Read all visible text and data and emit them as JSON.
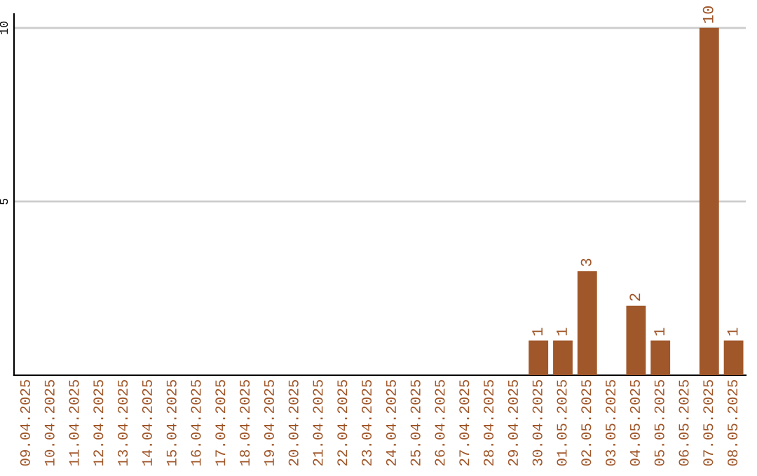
{
  "chart_data": {
    "type": "bar",
    "categories": [
      "09.04.2025",
      "10.04.2025",
      "11.04.2025",
      "12.04.2025",
      "13.04.2025",
      "14.04.2025",
      "15.04.2025",
      "16.04.2025",
      "17.04.2025",
      "18.04.2025",
      "19.04.2025",
      "20.04.2025",
      "21.04.2025",
      "22.04.2025",
      "23.04.2025",
      "24.04.2025",
      "25.04.2025",
      "26.04.2025",
      "27.04.2025",
      "28.04.2025",
      "29.04.2025",
      "30.04.2025",
      "01.05.2025",
      "02.05.2025",
      "03.05.2025",
      "04.05.2025",
      "05.05.2025",
      "06.05.2025",
      "07.05.2025",
      "08.05.2025"
    ],
    "values": [
      0,
      0,
      0,
      0,
      0,
      0,
      0,
      0,
      0,
      0,
      0,
      0,
      0,
      0,
      0,
      0,
      0,
      0,
      0,
      0,
      0,
      1,
      1,
      3,
      0,
      2,
      1,
      0,
      10,
      1
    ],
    "value_labels": [
      null,
      null,
      null,
      null,
      null,
      null,
      null,
      null,
      null,
      null,
      null,
      null,
      null,
      null,
      null,
      null,
      null,
      null,
      null,
      null,
      null,
      "1",
      "1",
      "3",
      null,
      "2",
      "1",
      null,
      "10",
      "1"
    ],
    "color": "#a0572a",
    "ylim": [
      0,
      10.4
    ],
    "yticks": [
      5,
      10
    ],
    "grid": "y"
  }
}
